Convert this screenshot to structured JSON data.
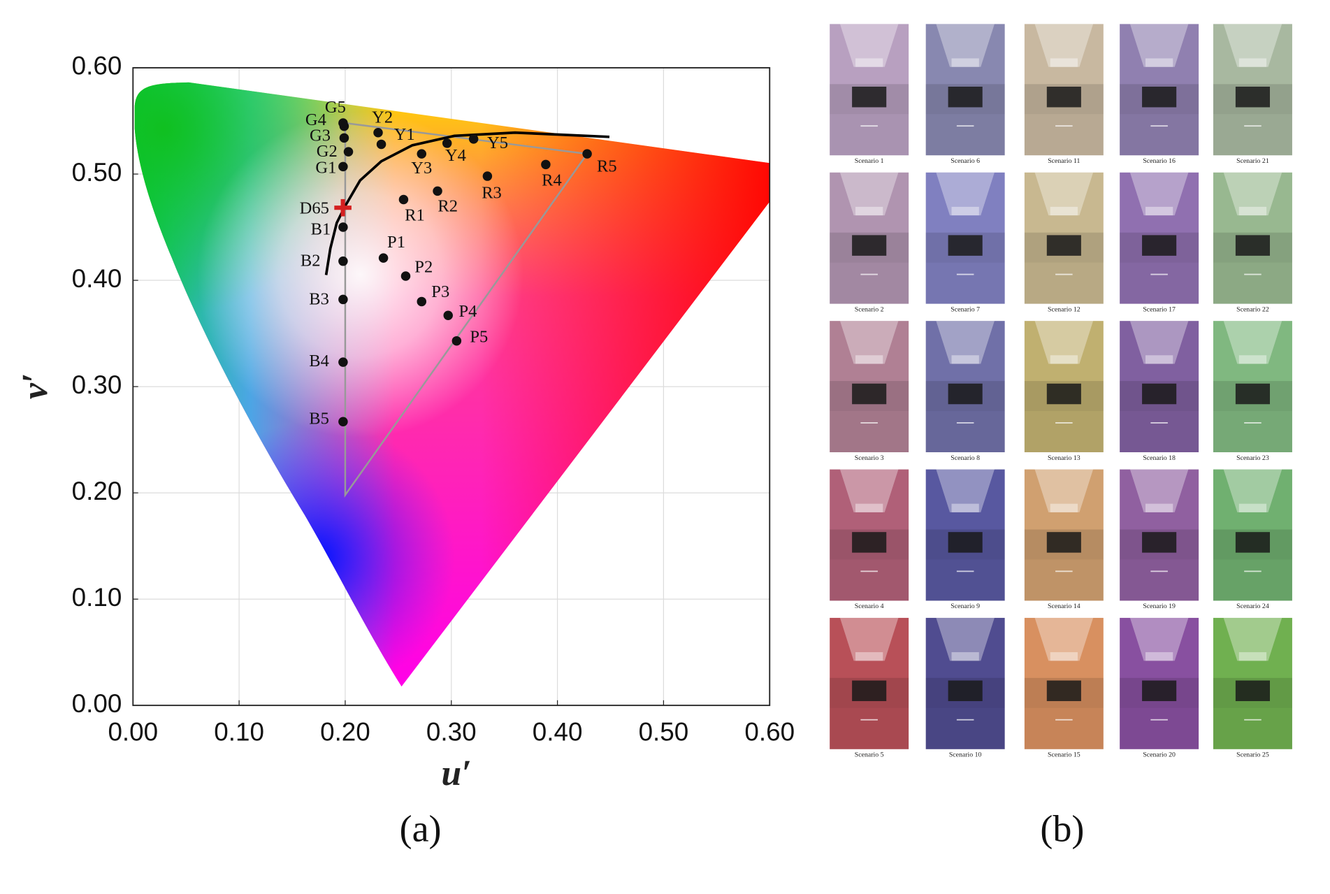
{
  "chart_data": {
    "type": "scatter",
    "xlabel": "u′",
    "ylabel": "v′",
    "xlim": [
      0,
      0.6
    ],
    "ylim": [
      0,
      0.6
    ],
    "xticks": [
      {
        "value": 0,
        "label": "0.00"
      },
      {
        "value": 0.1,
        "label": "0.10"
      },
      {
        "value": 0.2,
        "label": "0.20"
      },
      {
        "value": 0.3,
        "label": "0.30"
      },
      {
        "value": 0.4,
        "label": "0.40"
      },
      {
        "value": 0.5,
        "label": "0.50"
      },
      {
        "value": 0.6,
        "label": "0.60"
      }
    ],
    "yticks": [
      {
        "value": 0,
        "label": "0.00"
      },
      {
        "value": 0.1,
        "label": "0.10"
      },
      {
        "value": 0.2,
        "label": "0.20"
      },
      {
        "value": 0.3,
        "label": "0.30"
      },
      {
        "value": 0.4,
        "label": "0.40"
      },
      {
        "value": 0.5,
        "label": "0.50"
      },
      {
        "value": 0.6,
        "label": "0.60"
      }
    ],
    "grid": true,
    "color": "#111111",
    "labels": [
      "G1",
      "G2",
      "G3",
      "G4",
      "G5",
      "Y1",
      "Y2",
      "Y3",
      "Y4",
      "Y5",
      "R1",
      "R2",
      "R3",
      "R4",
      "R5",
      "P1",
      "P2",
      "P3",
      "P4",
      "P5",
      "B1",
      "B2",
      "B3",
      "B4",
      "B5"
    ],
    "x": [
      0.198,
      0.203,
      0.199,
      0.199,
      0.198,
      0.234,
      0.231,
      0.272,
      0.296,
      0.321,
      0.255,
      0.287,
      0.334,
      0.389,
      0.428,
      0.236,
      0.257,
      0.272,
      0.297,
      0.305,
      0.198,
      0.198,
      0.198,
      0.198,
      0.198
    ],
    "values": [
      0.507,
      0.521,
      0.534,
      0.545,
      0.548,
      0.528,
      0.539,
      0.519,
      0.529,
      0.533,
      0.476,
      0.484,
      0.498,
      0.509,
      0.519,
      0.421,
      0.404,
      0.38,
      0.367,
      0.343,
      0.45,
      0.418,
      0.382,
      0.323,
      0.267
    ],
    "white_point": {
      "label": "D65",
      "x": 0.1978,
      "y": 0.4683,
      "color": "#d42020"
    },
    "gamut": {
      "x": [
        0.2,
        0.2,
        0.428
      ],
      "y": [
        0.198,
        0.548,
        0.519
      ],
      "color": "#999999"
    },
    "planckian_locus": {
      "x": [
        0.182,
        0.186,
        0.192,
        0.2,
        0.214,
        0.234,
        0.263,
        0.303,
        0.36,
        0.449
      ],
      "y": [
        0.405,
        0.43,
        0.454,
        0.47,
        0.494,
        0.512,
        0.527,
        0.536,
        0.539,
        0.535
      ],
      "color": "#000000"
    },
    "panel_label": "(a)"
  },
  "panel_b": {
    "panel_label": "(b)",
    "scenarios": [
      {
        "label": "Scenario 1",
        "color": "#b8a0c0"
      },
      {
        "label": "Scenario 2",
        "color": "#b094b0"
      },
      {
        "label": "Scenario 3",
        "color": "#b08094"
      },
      {
        "label": "Scenario 4",
        "color": "#b06078"
      },
      {
        "label": "Scenario 5",
        "color": "#b85058"
      },
      {
        "label": "Scenario 6",
        "color": "#8888b0"
      },
      {
        "label": "Scenario 7",
        "color": "#8080c0"
      },
      {
        "label": "Scenario 8",
        "color": "#7070a8"
      },
      {
        "label": "Scenario 9",
        "color": "#5858a0"
      },
      {
        "label": "Scenario 10",
        "color": "#504c90"
      },
      {
        "label": "Scenario 11",
        "color": "#c8b8a0"
      },
      {
        "label": "Scenario 12",
        "color": "#c8b890"
      },
      {
        "label": "Scenario 13",
        "color": "#c0b070"
      },
      {
        "label": "Scenario 14",
        "color": "#d0a070"
      },
      {
        "label": "Scenario 15",
        "color": "#d89060"
      },
      {
        "label": "Scenario 16",
        "color": "#9080b0"
      },
      {
        "label": "Scenario 17",
        "color": "#9070b0"
      },
      {
        "label": "Scenario 18",
        "color": "#8060a0"
      },
      {
        "label": "Scenario 19",
        "color": "#9060a0"
      },
      {
        "label": "Scenario 20",
        "color": "#8850a0"
      },
      {
        "label": "Scenario 21",
        "color": "#a8b8a0"
      },
      {
        "label": "Scenario 22",
        "color": "#98b890"
      },
      {
        "label": "Scenario 23",
        "color": "#80b880"
      },
      {
        "label": "Scenario 24",
        "color": "#70b070"
      },
      {
        "label": "Scenario 25",
        "color": "#70b050"
      }
    ]
  }
}
